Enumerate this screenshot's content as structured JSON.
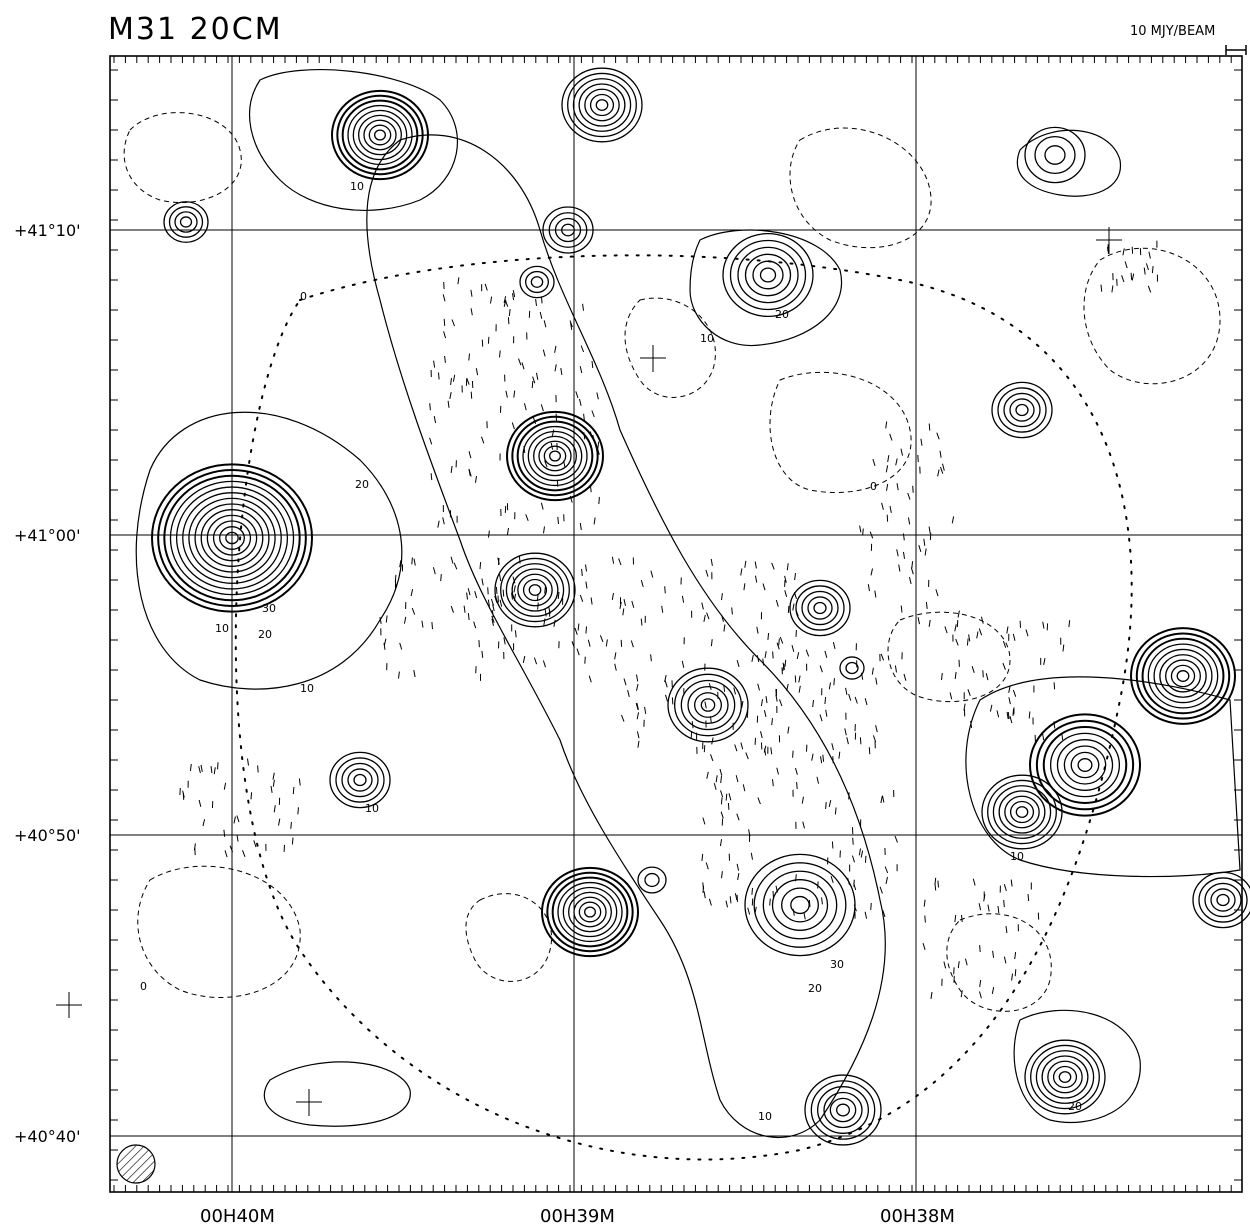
{
  "figure": {
    "title": "M31   20CM",
    "scale_label": "10 MJY/BEAM",
    "axes": {
      "dec_labels": [
        "+41°10'",
        "+41°00'",
        "+40°50'",
        "+40°40'"
      ],
      "ra_labels": [
        "00H40M",
        "00H39M",
        "00H38M"
      ]
    },
    "contour_labels": [
      "10",
      "20",
      "30",
      "0"
    ]
  }
}
